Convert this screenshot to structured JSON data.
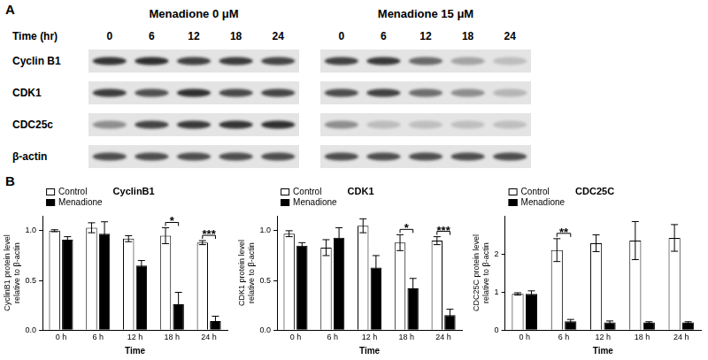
{
  "panel_labels": [
    "A",
    "B"
  ],
  "blot": {
    "conditions": [
      "Menadione 0 μM",
      "Menadione 15 μM"
    ],
    "time_label": "Time (hr)",
    "times": [
      0,
      6,
      12,
      18,
      24
    ],
    "proteins": [
      "Cyclin B1",
      "CDK1",
      "CDC25c",
      "β-actin"
    ]
  },
  "chart_data": [
    {
      "type": "bar",
      "title": "CyclinB1",
      "x_label": "Time",
      "y_label": [
        "CyclinB1 protein level",
        "relative to β-actin"
      ],
      "categories": [
        "0 h",
        "6 h",
        "12 h",
        "18 h",
        "24 h"
      ],
      "series": [
        {
          "name": "Control",
          "color": "#ffffff",
          "values": [
            1.0,
            1.03,
            0.92,
            0.95,
            0.88
          ],
          "errors": [
            0.01,
            0.05,
            0.03,
            0.08,
            0.02
          ]
        },
        {
          "name": "Menadione",
          "color": "#000000",
          "values": [
            0.91,
            0.97,
            0.65,
            0.26,
            0.09
          ],
          "errors": [
            0.03,
            0.12,
            0.05,
            0.12,
            0.05
          ]
        }
      ],
      "annotations": [
        {
          "category": "18 h",
          "text": "*"
        },
        {
          "category": "24 h",
          "text": "***"
        }
      ],
      "ylim": [
        0,
        1.15
      ],
      "yticks": [
        {
          "value": 0,
          "label": "0.0"
        },
        {
          "value": 0.5,
          "label": "0.5"
        },
        {
          "value": 1,
          "label": "1.0"
        }
      ],
      "grid": false,
      "legend": "upper left"
    },
    {
      "type": "bar",
      "title": "CDK1",
      "x_label": "Time",
      "y_label": [
        "CDK1 protein level",
        "relative to β-actin"
      ],
      "categories": [
        "0 h",
        "6 h",
        "12 h",
        "18 h",
        "24 h"
      ],
      "series": [
        {
          "name": "Control",
          "color": "#ffffff",
          "values": [
            0.97,
            0.83,
            1.05,
            0.88,
            0.9
          ],
          "errors": [
            0.03,
            0.08,
            0.07,
            0.08,
            0.04
          ]
        },
        {
          "name": "Menadione",
          "color": "#000000",
          "values": [
            0.85,
            0.93,
            0.63,
            0.42,
            0.15
          ],
          "errors": [
            0.03,
            0.1,
            0.12,
            0.1,
            0.06
          ]
        }
      ],
      "annotations": [
        {
          "category": "18 h",
          "text": "*"
        },
        {
          "category": "24 h",
          "text": "***"
        }
      ],
      "ylim": [
        0,
        1.15
      ],
      "yticks": [
        {
          "value": 0,
          "label": "0.0"
        },
        {
          "value": 0.5,
          "label": "0.5"
        },
        {
          "value": 1,
          "label": "1.0"
        }
      ],
      "grid": false,
      "legend": "upper left"
    },
    {
      "type": "bar",
      "title": "CDC25C",
      "x_label": "Time",
      "y_label": [
        "CDC25C protein level",
        "relative to β-actin"
      ],
      "categories": [
        "0 h",
        "6 h",
        "12 h",
        "18 h",
        "24 h"
      ],
      "series": [
        {
          "name": "Control",
          "color": "#ffffff",
          "values": [
            0.95,
            2.1,
            2.28,
            2.35,
            2.42
          ],
          "errors": [
            0.03,
            0.3,
            0.22,
            0.5,
            0.35
          ]
        },
        {
          "name": "Menadione",
          "color": "#000000",
          "values": [
            0.95,
            0.23,
            0.2,
            0.2,
            0.2
          ],
          "errors": [
            0.08,
            0.05,
            0.04,
            0.02,
            0.02
          ]
        }
      ],
      "annotations": [
        {
          "category": "6 h",
          "text": "**"
        }
      ],
      "ylim": [
        0,
        3
      ],
      "yticks": [
        0,
        1,
        2
      ],
      "grid": false,
      "legend": "upper left"
    }
  ]
}
